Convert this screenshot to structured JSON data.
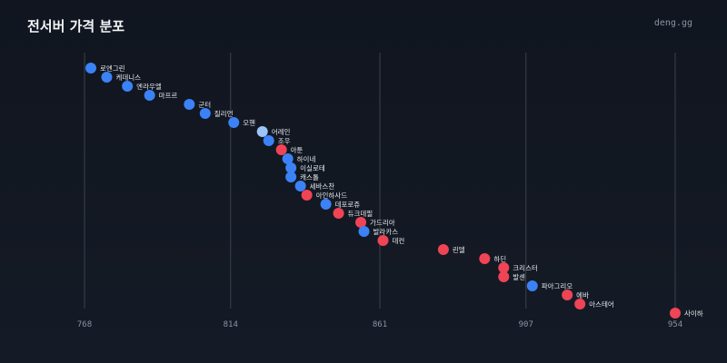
{
  "header": {
    "title": "전서버 가격 분포",
    "brand": "deng.gg"
  },
  "colors": {
    "blue": "#3b82f6",
    "red": "#ef4455",
    "light_blue": "#9cc4f5",
    "grid": "#3a414d"
  },
  "chart_data": {
    "type": "scatter",
    "title": "전서버 가격 분포",
    "xlabel": "",
    "ylabel": "",
    "xticks": [
      768,
      814,
      861,
      907,
      954
    ],
    "xlim": [
      766,
      956
    ],
    "grid": true,
    "points": [
      {
        "label": "로엔그린",
        "x": 770,
        "color": "blue"
      },
      {
        "label": "케데니스",
        "x": 775,
        "color": "blue"
      },
      {
        "label": "엔라우엘",
        "x": 781.5,
        "color": "blue"
      },
      {
        "label": "마프르",
        "x": 788.5,
        "color": "blue"
      },
      {
        "label": "군터",
        "x": 801,
        "color": "blue"
      },
      {
        "label": "질리언",
        "x": 806,
        "color": "blue"
      },
      {
        "label": "오헨",
        "x": 815,
        "color": "blue"
      },
      {
        "label": "어레인",
        "x": 824,
        "color": "light_blue"
      },
      {
        "label": "조우",
        "x": 826,
        "color": "blue"
      },
      {
        "label": "아툰",
        "x": 830,
        "color": "red"
      },
      {
        "label": "하이네",
        "x": 832,
        "color": "blue"
      },
      {
        "label": "이실로테",
        "x": 833,
        "color": "blue"
      },
      {
        "label": "캐스톨",
        "x": 833,
        "color": "blue"
      },
      {
        "label": "세바스찬",
        "x": 836,
        "color": "blue"
      },
      {
        "label": "아인하사드",
        "x": 838,
        "color": "red"
      },
      {
        "label": "데포로쥬",
        "x": 844,
        "color": "blue"
      },
      {
        "label": "듀크데필",
        "x": 848,
        "color": "red"
      },
      {
        "label": "가드리아",
        "x": 855,
        "color": "red"
      },
      {
        "label": "발라카스",
        "x": 856,
        "color": "blue"
      },
      {
        "label": "데컨",
        "x": 862,
        "color": "red"
      },
      {
        "label": "린델",
        "x": 881,
        "color": "red"
      },
      {
        "label": "하딘",
        "x": 894,
        "color": "red"
      },
      {
        "label": "크리스터",
        "x": 900,
        "color": "red"
      },
      {
        "label": "발센",
        "x": 900,
        "color": "red"
      },
      {
        "label": "파아그리오",
        "x": 909,
        "color": "blue"
      },
      {
        "label": "에바",
        "x": 920,
        "color": "red"
      },
      {
        "label": "아스테어",
        "x": 924,
        "color": "red"
      },
      {
        "label": "사이하",
        "x": 954,
        "color": "red"
      }
    ]
  }
}
